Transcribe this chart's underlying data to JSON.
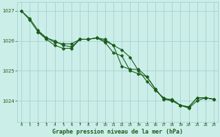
{
  "background_color": "#cceee8",
  "grid_color": "#99cccc",
  "line_color": "#1a5c1a",
  "marker_color": "#1a5c1a",
  "title": "Graphe pression niveau de la mer (hPa)",
  "title_color": "#1a5c1a",
  "xlim": [
    -0.5,
    23.5
  ],
  "ylim": [
    1023.3,
    1027.3
  ],
  "yticks": [
    1024,
    1025,
    1026,
    1027
  ],
  "xtick_labels": [
    "0",
    "1",
    "2",
    "3",
    "4",
    "5",
    "6",
    "7",
    "8",
    "9",
    "10",
    "11",
    "12",
    "13",
    "14",
    "15",
    "16",
    "17",
    "18",
    "19",
    "20",
    "21",
    "22",
    "23"
  ],
  "series1_x": [
    0,
    1,
    2,
    3,
    4,
    5,
    6,
    7,
    8,
    9,
    10,
    11,
    12,
    13,
    14,
    15,
    16,
    17,
    18,
    19,
    20,
    21,
    22,
    23
  ],
  "series1_y": [
    1027.0,
    1026.7,
    1026.3,
    1026.1,
    1026.0,
    1025.85,
    1025.8,
    1026.05,
    1026.05,
    1026.1,
    1026.0,
    1025.85,
    1025.15,
    1025.05,
    1025.05,
    1024.8,
    1024.4,
    1024.05,
    1024.05,
    1023.85,
    1023.8,
    1024.1,
    1024.1,
    1024.05
  ],
  "series2_x": [
    0,
    1,
    2,
    3,
    4,
    5,
    6,
    7,
    8,
    9,
    10,
    11,
    12,
    13,
    14,
    15,
    16,
    17,
    18,
    19,
    20,
    21,
    22,
    23
  ],
  "series2_y": [
    1027.0,
    1026.75,
    1026.35,
    1026.1,
    1025.95,
    1025.9,
    1025.9,
    1026.05,
    1026.05,
    1026.1,
    1025.95,
    1025.6,
    1025.5,
    1025.0,
    1024.9,
    1024.8,
    1024.4,
    1024.05,
    1024.0,
    1023.85,
    1023.78,
    1024.1,
    1024.1,
    1024.05
  ],
  "series3_x": [
    2,
    3,
    4,
    5,
    6,
    7,
    8,
    9,
    10,
    11,
    12,
    13,
    14,
    15,
    16,
    17,
    18,
    19,
    20,
    21,
    22,
    23
  ],
  "series3_y": [
    1026.3,
    1026.05,
    1025.85,
    1025.75,
    1025.75,
    1026.05,
    1026.05,
    1026.1,
    1026.05,
    1025.85,
    1025.7,
    1025.45,
    1025.0,
    1024.65,
    1024.35,
    1024.1,
    1024.0,
    1023.85,
    1023.75,
    1024.0,
    1024.1,
    1024.05
  ]
}
